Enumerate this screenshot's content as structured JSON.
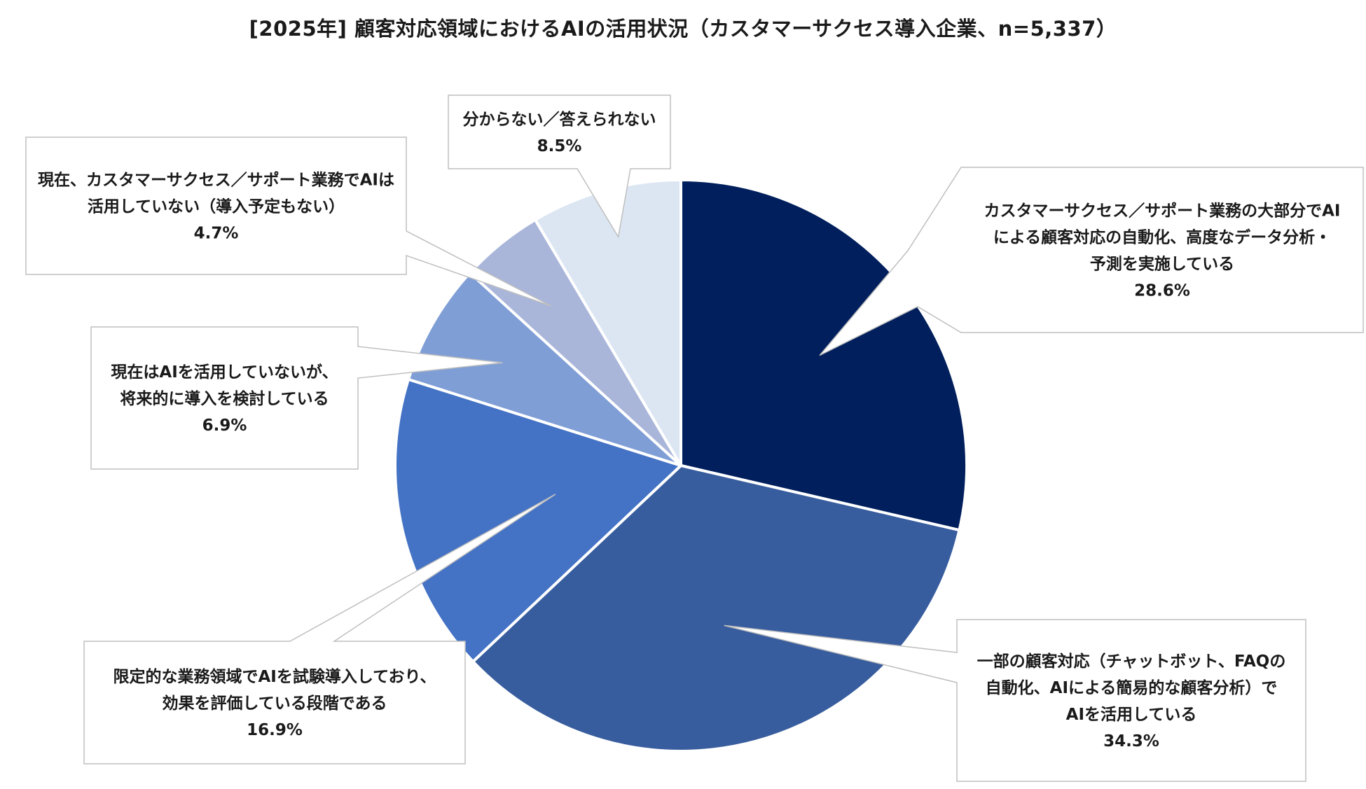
{
  "chart_data": {
    "type": "pie",
    "title": "[2025年] 顧客対応領域におけるAIの活用状況（カスタマーサクセス導入企業、n=5,337）",
    "start_angle_deg": 0,
    "direction": "clockwise",
    "slices": [
      {
        "lines": [
          "カスタマーサクセス／サポート業務の大部分でAI",
          "による顧客対応の自動化、高度なデータ分析・",
          "予測を実施している"
        ],
        "value": 28.6,
        "value_label": "28.6%",
        "color": "#001f5c"
      },
      {
        "lines": [
          "一部の顧客対応（チャットボット、FAQの",
          "自動化、AIによる簡易的な顧客分析）で",
          "AIを活用している"
        ],
        "value": 34.3,
        "value_label": "34.3%",
        "color": "#385d9e"
      },
      {
        "lines": [
          "限定的な業務領域でAIを試験導入しており、",
          "効果を評価している段階である"
        ],
        "value": 16.9,
        "value_label": "16.9%",
        "color": "#4472c4"
      },
      {
        "lines": [
          "現在はAIを活用していないが、",
          "将来的に導入を検討している"
        ],
        "value": 6.9,
        "value_label": "6.9%",
        "color": "#7f9ed6"
      },
      {
        "lines": [
          "現在、カスタマーサクセス／サポート業務でAIは",
          "活用していない（導入予定もない）"
        ],
        "value": 4.7,
        "value_label": "4.7%",
        "color": "#a9b6da"
      },
      {
        "lines": [
          "分からない／答えられない"
        ],
        "value": 8.5,
        "value_label": "8.5%",
        "color": "#dce6f2"
      }
    ]
  }
}
